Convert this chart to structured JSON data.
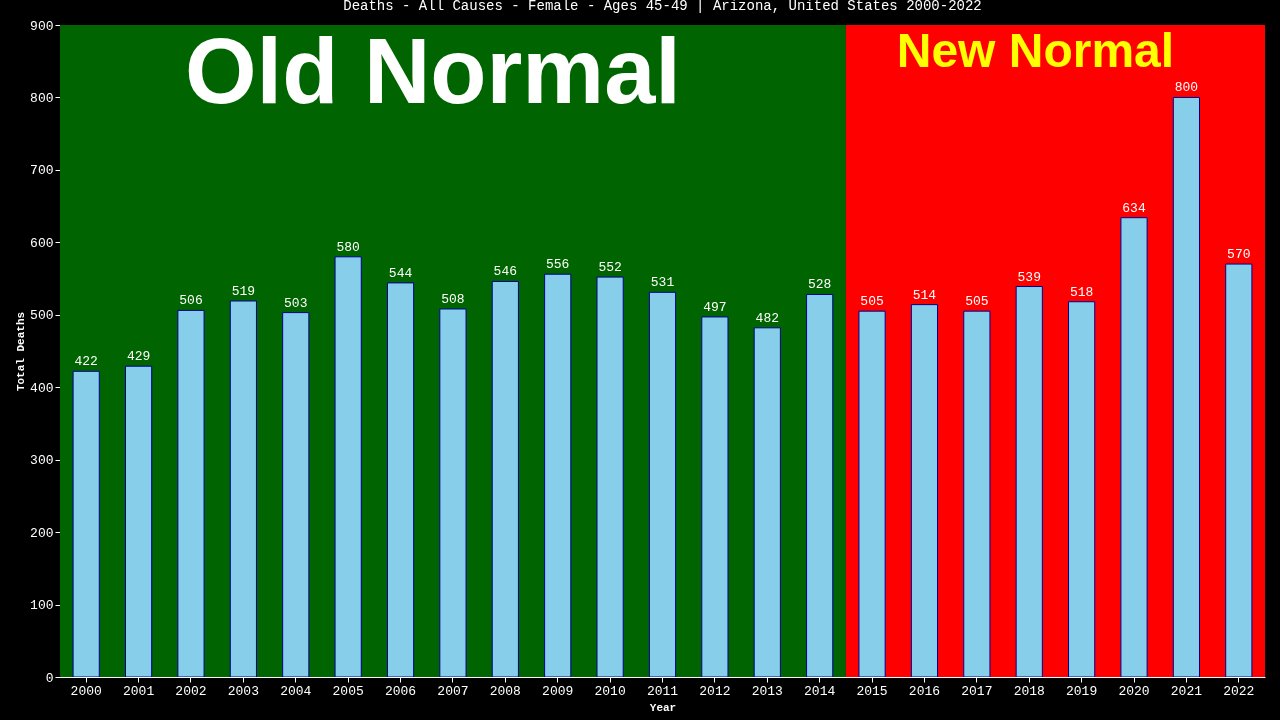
{
  "chart_data": {
    "type": "bar",
    "title": "Deaths - All Causes - Female - Ages 45-49 | Arizona, United States 2000-2022",
    "xlabel": "Year",
    "ylabel": "Total Deaths",
    "categories": [
      "2000",
      "2001",
      "2002",
      "2003",
      "2004",
      "2005",
      "2006",
      "2007",
      "2008",
      "2009",
      "2010",
      "2011",
      "2012",
      "2013",
      "2014",
      "2015",
      "2016",
      "2017",
      "2018",
      "2019",
      "2020",
      "2021",
      "2022"
    ],
    "values": [
      422,
      429,
      506,
      519,
      503,
      580,
      544,
      508,
      546,
      556,
      552,
      531,
      497,
      482,
      528,
      505,
      514,
      505,
      539,
      518,
      634,
      800,
      570
    ],
    "color": "#87ceeb",
    "ylim": [
      0,
      900
    ],
    "yticks": [
      0,
      100,
      200,
      300,
      400,
      500,
      600,
      700,
      800,
      900
    ],
    "data_labels": true,
    "grid": false,
    "bands": [
      {
        "axis": "x",
        "from": "2000",
        "to": "2014",
        "label": "Old Normal",
        "color": "#006400"
      },
      {
        "axis": "x",
        "from": "2015",
        "to": "2022",
        "label": "New Normal",
        "color": "#ff0000"
      }
    ]
  }
}
